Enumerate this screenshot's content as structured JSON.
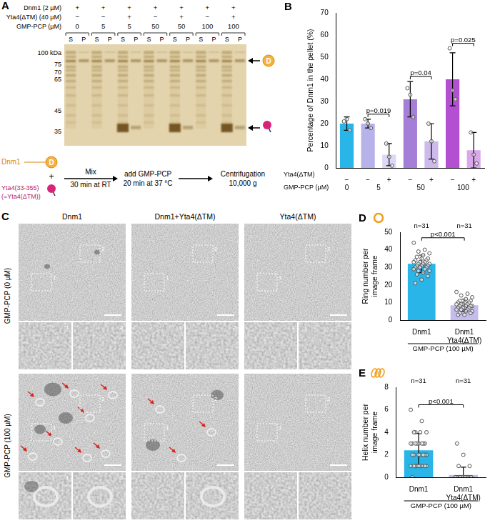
{
  "panel_A": {
    "letter": "A",
    "row_labels": [
      "Dnm1 (2 µM)",
      "Yta4(ΔTM) (40 µM)",
      "GMP-PCP (µM)"
    ],
    "conditions": [
      [
        "+",
        "−",
        "0"
      ],
      [
        "+",
        "−",
        "5"
      ],
      [
        "+",
        "+",
        "5"
      ],
      [
        "+",
        "−",
        "50"
      ],
      [
        "+",
        "+",
        "50"
      ],
      [
        "+",
        "−",
        "100"
      ],
      [
        "+",
        "+",
        "100"
      ]
    ],
    "lane_labels": [
      "S",
      "P"
    ],
    "mw_labels": [
      "100 kDa",
      "75",
      "70",
      "65",
      "45",
      "35"
    ],
    "dnm1_icon": "D",
    "flow": {
      "protein_1": "Dnm1",
      "plus": "+",
      "protein_2": "Yta4(33-355)",
      "protein_2_alias": "(=Yta4(ΔTM))",
      "arrow_label": [
        "Mix",
        "30 min at RT"
      ],
      "steps": [
        [
          "add GMP-PCP",
          "20 min at 37 °C"
        ],
        [
          "Centrifugation",
          "10,000 g"
        ]
      ]
    }
  },
  "panel_C": {
    "letter": "C",
    "columns": [
      "Dnm1",
      "Dnm1+Yta4(ΔTM)",
      "Yta4(ΔTM)"
    ],
    "rows": [
      "GMP-PCP (0 µM)",
      "GMP-PCP (100 µM)"
    ],
    "insets": [
      "1",
      "2"
    ]
  },
  "chart_data": [
    {
      "panel": "B",
      "type": "bar",
      "y_label": "Percentage of Dnm1 in the pellet (%)",
      "categories": [
        "−",
        "−",
        "+",
        "−",
        "+",
        "−",
        "+"
      ],
      "category_row_label": "Yta4(ΔTM)",
      "groups": [
        {
          "label": "0",
          "from": 0,
          "to": 0
        },
        {
          "label": "5",
          "from": 1,
          "to": 2
        },
        {
          "label": "50",
          "from": 3,
          "to": 4
        },
        {
          "label": "100",
          "from": 5,
          "to": 6
        }
      ],
      "group_row_label": "GMP-PCP (µM)",
      "values": [
        20,
        20,
        6,
        31,
        12,
        40,
        8
      ],
      "errors": [
        3,
        2,
        5,
        8,
        8,
        12,
        8
      ],
      "points": [
        [
          21,
          22,
          17
        ],
        [
          22,
          20,
          18
        ],
        [
          11,
          5,
          1
        ],
        [
          36,
          33,
          23
        ],
        [
          20,
          12,
          3
        ],
        [
          54,
          35,
          31
        ],
        [
          16,
          6,
          2
        ]
      ],
      "colors": [
        "#29b5e8",
        "#b8b2ea",
        "#dcd8f5",
        "#a57ed8",
        "#cdb9ec",
        "#b350d2",
        "#d9a7ea"
      ],
      "ylim": [
        0,
        70
      ],
      "yticks": [
        0,
        10,
        20,
        30,
        40,
        50,
        60,
        70
      ],
      "grid": false,
      "comparisons": [
        {
          "label": "p=0.019",
          "between": [
            1,
            2
          ]
        },
        {
          "label": "p=0.04",
          "between": [
            3,
            4
          ]
        },
        {
          "label": "p=0.025",
          "between": [
            5,
            6
          ]
        }
      ]
    },
    {
      "panel": "D",
      "type": "bar",
      "y_label": "Ring number per image frame",
      "categories": [
        "Dnm1",
        "Dnm1 Yta4(ΔTM)"
      ],
      "group_label": "GMP-PCP (100 µM)",
      "n_labels": [
        "n=31",
        "n=31"
      ],
      "values": [
        32,
        8.4
      ],
      "errors": [
        5,
        3.5
      ],
      "points": [
        [
          44,
          40,
          39,
          38,
          37,
          36,
          35,
          35,
          34,
          34,
          33,
          33,
          33,
          32,
          32,
          32,
          31,
          31,
          31,
          30,
          30,
          30,
          29,
          29,
          28,
          28,
          27,
          26,
          25,
          23,
          21
        ],
        [
          16,
          15,
          14,
          13,
          12,
          11,
          11,
          10,
          10,
          10,
          9,
          9,
          9,
          9,
          8,
          8,
          8,
          8,
          7,
          7,
          7,
          7,
          6,
          6,
          6,
          5,
          5,
          4,
          4,
          3,
          3
        ]
      ],
      "colors": [
        "#29b5e8",
        "#c4bcea"
      ],
      "ylim": [
        0,
        50
      ],
      "yticks": [
        0,
        10,
        20,
        30,
        40,
        50
      ],
      "grid": false,
      "comparisons": [
        {
          "label": "p<0.001",
          "between": [
            0,
            1
          ]
        }
      ]
    },
    {
      "panel": "E",
      "type": "bar",
      "y_label": "Helix number per image frame",
      "categories": [
        "Dnm1",
        "Dnm1 Yta4(ΔTM)"
      ],
      "group_label": "GMP-PCP (100 µM)",
      "n_labels": [
        "n=31",
        "n=31"
      ],
      "values": [
        2.4,
        0.2
      ],
      "errors": [
        1.5,
        0.7
      ],
      "points": [
        [
          6,
          5,
          4,
          4,
          4,
          4,
          3,
          3,
          3,
          3,
          3,
          3,
          3,
          3,
          2,
          2,
          2,
          2,
          2,
          2,
          2,
          1,
          1,
          1,
          1,
          1,
          1,
          1,
          1,
          1,
          0
        ],
        [
          0,
          0,
          0,
          0,
          0,
          0,
          0,
          0,
          0,
          0,
          0,
          0,
          0,
          0,
          0,
          0,
          0,
          0,
          0,
          0,
          0,
          0,
          0,
          0,
          0,
          0,
          0,
          1,
          1,
          2,
          3
        ]
      ],
      "colors": [
        "#29b5e8",
        "#c4bcea"
      ],
      "ylim": [
        0,
        8
      ],
      "yticks": [
        0,
        2,
        4,
        6,
        8
      ],
      "grid": false,
      "comparisons": [
        {
          "label": "p<0.001",
          "between": [
            0,
            1
          ]
        }
      ]
    }
  ]
}
